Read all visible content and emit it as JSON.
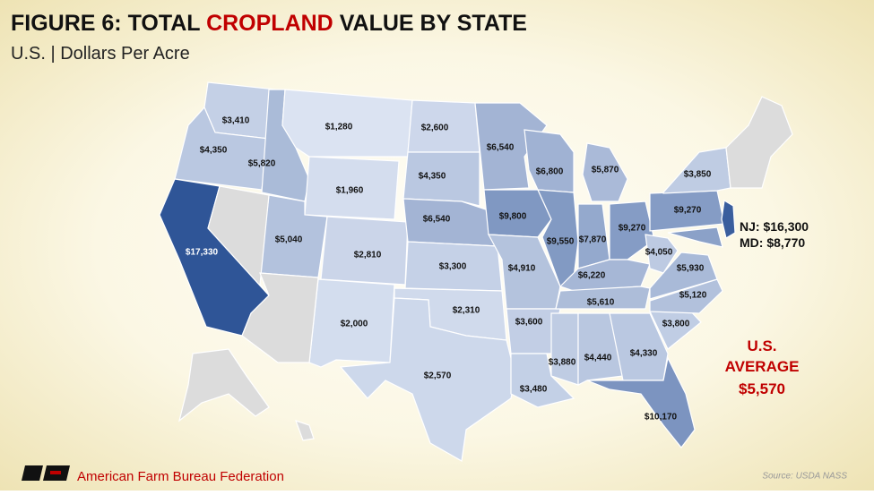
{
  "title_parts": [
    "FIGURE 6: TOTAL ",
    "CROPLAND",
    " VALUE BY STATE"
  ],
  "subtitle": "U.S. | Dollars Per Acre",
  "map": {
    "type": "choropleth",
    "color_range": [
      "#dbe3f2",
      "#2f5597"
    ],
    "values": [
      3410,
      4350,
      17330,
      5820,
      1280,
      1960,
      5040,
      2810,
      2000,
      2600,
      4350,
      6540,
      3300,
      2310,
      2570,
      6540,
      9800,
      4910,
      3600,
      3480,
      6800,
      9550,
      5870,
      7870,
      9270,
      6220,
      5610,
      3880,
      4440,
      4330,
      10170,
      3800,
      5120,
      5930,
      4050,
      9270,
      3850,
      8770,
      16300
    ],
    "value_labels": [
      "$3,410",
      "$4,350",
      "$17,330",
      "$5,820",
      "$1,280",
      "$1,960",
      "$5,040",
      "$2,810",
      "$2,000",
      "$2,600",
      "$4,350",
      "$6,540",
      "$3,300",
      "$2,310",
      "$2,570",
      "$6,540",
      "$9,800",
      "$4,910",
      "$3,600",
      "$3,480",
      "$6,800",
      "$9,550",
      "$5,870",
      "$7,870",
      "$9,270",
      "$6,220",
      "$5,610",
      "$3,880",
      "$4,440",
      "$4,330",
      "$10,170",
      "$3,800",
      "$5,120",
      "$5,930",
      "$4,050",
      "$9,270",
      "$3,850",
      null,
      null
    ],
    "callouts": [
      "NJ: $16,300",
      "MD: $8,770"
    ]
  },
  "average": {
    "lines": [
      "U.S.",
      "AVERAGE"
    ],
    "value": 5570,
    "value_label": "$5,570"
  },
  "footer": {
    "organization": "American Farm Bureau Federation",
    "source": "Source: USDA NASS"
  }
}
